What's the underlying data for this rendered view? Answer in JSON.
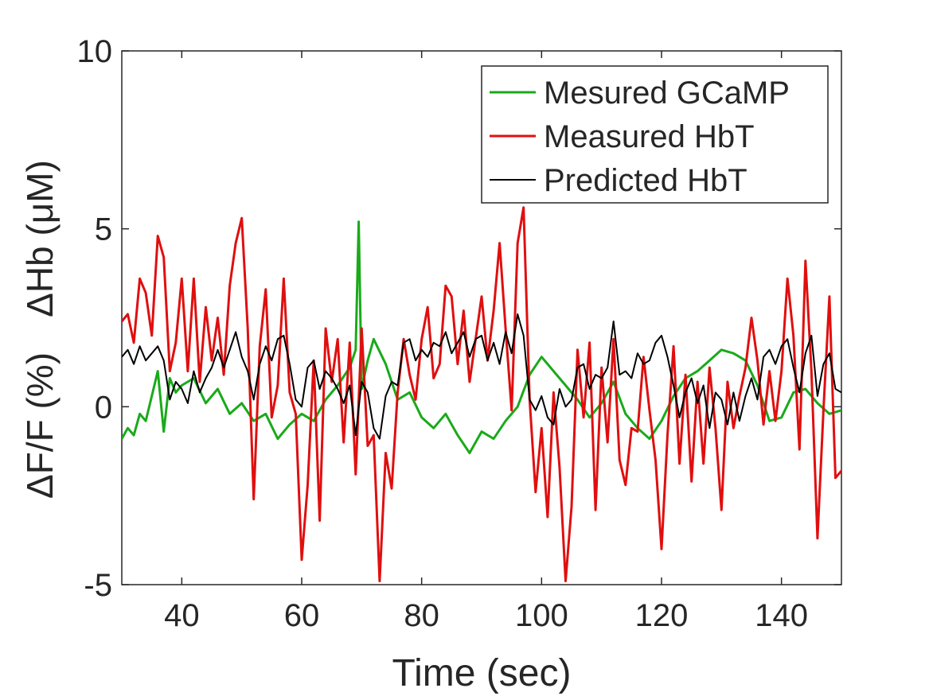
{
  "chart_data": {
    "type": "line",
    "title": "",
    "xlabel": "Time (sec)",
    "ylabel_top": "ΔHb (μM)",
    "ylabel_bottom": "ΔF/F (%)",
    "xlim": [
      30,
      150
    ],
    "ylim": [
      -5,
      10
    ],
    "xticks": [
      40,
      60,
      80,
      100,
      120,
      140
    ],
    "yticks": [
      -5,
      0,
      5,
      10
    ],
    "xtick_labels": [
      "40",
      "60",
      "80",
      "100",
      "120",
      "140"
    ],
    "ytick_labels": [
      "-5",
      "0",
      "5",
      "10"
    ],
    "grid": false,
    "legend_position": "top-right",
    "series": [
      {
        "name": "Mesured GCaMP",
        "color": "#1aaa1a",
        "line_width": 3,
        "x": [
          30,
          31,
          32,
          33,
          34,
          35,
          36,
          37,
          38,
          39,
          40,
          42,
          44,
          46,
          48,
          50,
          52,
          54,
          56,
          58,
          60,
          62,
          64,
          66,
          68,
          69,
          69.5,
          70,
          71,
          72,
          74,
          76,
          78,
          80,
          82,
          84,
          86,
          88,
          90,
          92,
          94,
          96,
          98,
          100,
          102,
          104,
          106,
          108,
          110,
          112,
          114,
          116,
          118,
          120,
          122,
          124,
          126,
          128,
          130,
          132,
          134,
          136,
          138,
          140,
          142,
          144,
          146,
          148,
          150
        ],
        "y": [
          -0.9,
          -0.6,
          -0.8,
          -0.2,
          -0.4,
          0.3,
          1.0,
          -0.7,
          0.8,
          0.4,
          0.6,
          0.8,
          0.1,
          0.5,
          -0.2,
          0.1,
          -0.4,
          -0.2,
          -0.9,
          -0.5,
          -0.2,
          -0.4,
          0.2,
          0.6,
          1.1,
          1.6,
          5.2,
          0.5,
          1.3,
          1.9,
          1.2,
          0.2,
          0.4,
          -0.3,
          -0.6,
          -0.2,
          -0.8,
          -1.3,
          -0.7,
          -0.9,
          -0.4,
          0.0,
          0.9,
          1.4,
          1.0,
          0.6,
          0.2,
          -0.3,
          0.1,
          0.7,
          -0.2,
          -0.6,
          -0.9,
          -0.4,
          0.3,
          0.8,
          1.0,
          1.3,
          1.6,
          1.5,
          1.3,
          0.6,
          -0.4,
          -0.3,
          0.4,
          0.5,
          0.1,
          -0.2,
          -0.1
        ]
      },
      {
        "name": "Measured HbT",
        "color": "#e00f0f",
        "line_width": 3,
        "x": [
          30,
          31,
          32,
          33,
          34,
          35,
          36,
          37,
          38,
          39,
          40,
          41,
          42,
          43,
          44,
          45,
          46,
          47,
          48,
          49,
          50,
          51,
          52,
          53,
          54,
          55,
          56,
          57,
          58,
          59,
          60,
          61,
          62,
          63,
          64,
          65,
          66,
          67,
          68,
          69,
          70,
          71,
          72,
          73,
          74,
          75,
          76,
          77,
          78,
          79,
          80,
          81,
          82,
          83,
          84,
          85,
          86,
          87,
          88,
          89,
          90,
          91,
          92,
          93,
          94,
          95,
          96,
          97,
          98,
          99,
          100,
          101,
          102,
          103,
          104,
          105,
          106,
          107,
          108,
          109,
          110,
          111,
          112,
          113,
          114,
          115,
          116,
          117,
          118,
          119,
          120,
          121,
          122,
          123,
          124,
          125,
          126,
          127,
          128,
          129,
          130,
          131,
          132,
          133,
          134,
          135,
          136,
          137,
          138,
          139,
          140,
          141,
          142,
          143,
          144,
          145,
          146,
          147,
          148,
          149,
          150
        ],
        "y": [
          2.4,
          2.6,
          1.8,
          3.6,
          3.2,
          2.0,
          4.8,
          4.2,
          1.0,
          1.8,
          3.6,
          1.0,
          3.6,
          0.7,
          2.8,
          1.3,
          2.5,
          0.9,
          3.4,
          4.6,
          5.3,
          2.2,
          -2.6,
          1.7,
          3.3,
          -0.3,
          0.6,
          3.6,
          0.4,
          -0.2,
          -4.3,
          -2.2,
          1.3,
          -3.2,
          2.2,
          0.7,
          1.9,
          -1.0,
          1.8,
          -1.9,
          2.2,
          -1.1,
          -0.8,
          -4.9,
          -1.3,
          -2.3,
          0.4,
          1.9,
          0.9,
          0.2,
          1.9,
          2.8,
          0.8,
          1.2,
          3.4,
          3.1,
          1.2,
          2.7,
          0.7,
          1.9,
          3.1,
          1.3,
          2.7,
          4.6,
          2.2,
          -0.1,
          4.6,
          5.6,
          0.2,
          -2.4,
          -0.6,
          -3.1,
          0.4,
          -1.7,
          -4.9,
          -2.8,
          1.6,
          -0.3,
          1.8,
          -2.9,
          1.1,
          -1.0,
          1.9,
          -1.5,
          -2.2,
          -0.6,
          -0.7,
          1.4,
          -0.1,
          -1.5,
          -4.0,
          -0.8,
          1.7,
          -1.6,
          0.9,
          -2.1,
          0.7,
          -1.6,
          1.1,
          -0.6,
          -2.9,
          0.7,
          -0.6,
          0.3,
          1.1,
          2.5,
          1.3,
          -0.5,
          1.0,
          -0.4,
          1.0,
          3.6,
          2.0,
          -1.2,
          4.1,
          1.0,
          -3.7,
          -0.1,
          3.1,
          -2.0,
          -1.8
        ]
      },
      {
        "name": "Predicted HbT",
        "color": "#000000",
        "line_width": 2,
        "x": [
          30,
          31,
          32,
          33,
          34,
          35,
          36,
          37,
          38,
          39,
          40,
          41,
          42,
          43,
          44,
          45,
          46,
          47,
          48,
          49,
          50,
          51,
          52,
          53,
          54,
          55,
          56,
          57,
          58,
          59,
          60,
          61,
          62,
          63,
          64,
          65,
          66,
          67,
          68,
          69,
          70,
          71,
          72,
          73,
          74,
          75,
          76,
          77,
          78,
          79,
          80,
          81,
          82,
          83,
          84,
          85,
          86,
          87,
          88,
          89,
          90,
          91,
          92,
          93,
          94,
          95,
          96,
          97,
          98,
          99,
          100,
          101,
          102,
          103,
          104,
          105,
          106,
          107,
          108,
          109,
          110,
          111,
          112,
          113,
          114,
          115,
          116,
          117,
          118,
          119,
          120,
          121,
          122,
          123,
          124,
          125,
          126,
          127,
          128,
          129,
          130,
          131,
          132,
          133,
          134,
          135,
          136,
          137,
          138,
          139,
          140,
          141,
          142,
          143,
          144,
          145,
          146,
          147,
          148,
          149,
          150
        ],
        "y": [
          1.4,
          1.6,
          1.2,
          1.7,
          1.3,
          1.5,
          1.7,
          1.3,
          0.2,
          0.7,
          0.5,
          0.1,
          1.0,
          0.4,
          0.8,
          1.1,
          1.6,
          1.1,
          1.6,
          2.1,
          1.4,
          1.0,
          0.2,
          1.2,
          1.7,
          1.3,
          1.9,
          2.0,
          1.2,
          0.2,
          0.0,
          1.1,
          1.3,
          0.5,
          1.0,
          0.8,
          0.5,
          0.1,
          0.6,
          -0.8,
          0.7,
          0.4,
          -0.6,
          -0.9,
          0.3,
          0.7,
          0.6,
          1.8,
          1.9,
          1.3,
          1.6,
          1.4,
          1.8,
          1.7,
          2.1,
          1.5,
          1.8,
          2.1,
          1.4,
          1.9,
          2.0,
          1.3,
          1.8,
          1.2,
          2.1,
          1.5,
          2.6,
          2.0,
          0.2,
          -0.1,
          0.3,
          -0.3,
          -0.5,
          0.5,
          0.0,
          0.2,
          1.1,
          1.2,
          0.5,
          0.9,
          0.8,
          1.1,
          2.4,
          0.9,
          1.0,
          0.8,
          1.5,
          1.2,
          1.3,
          1.8,
          2.0,
          1.4,
          0.6,
          -0.3,
          0.4,
          0.8,
          0.1,
          0.6,
          -0.6,
          0.4,
          0.2,
          -0.5,
          0.4,
          -0.4,
          0.3,
          0.8,
          0.2,
          1.4,
          1.6,
          1.2,
          1.7,
          1.9,
          1.1,
          0.4,
          1.5,
          2.0,
          0.3,
          1.2,
          1.5,
          0.5,
          0.4
        ]
      }
    ]
  }
}
